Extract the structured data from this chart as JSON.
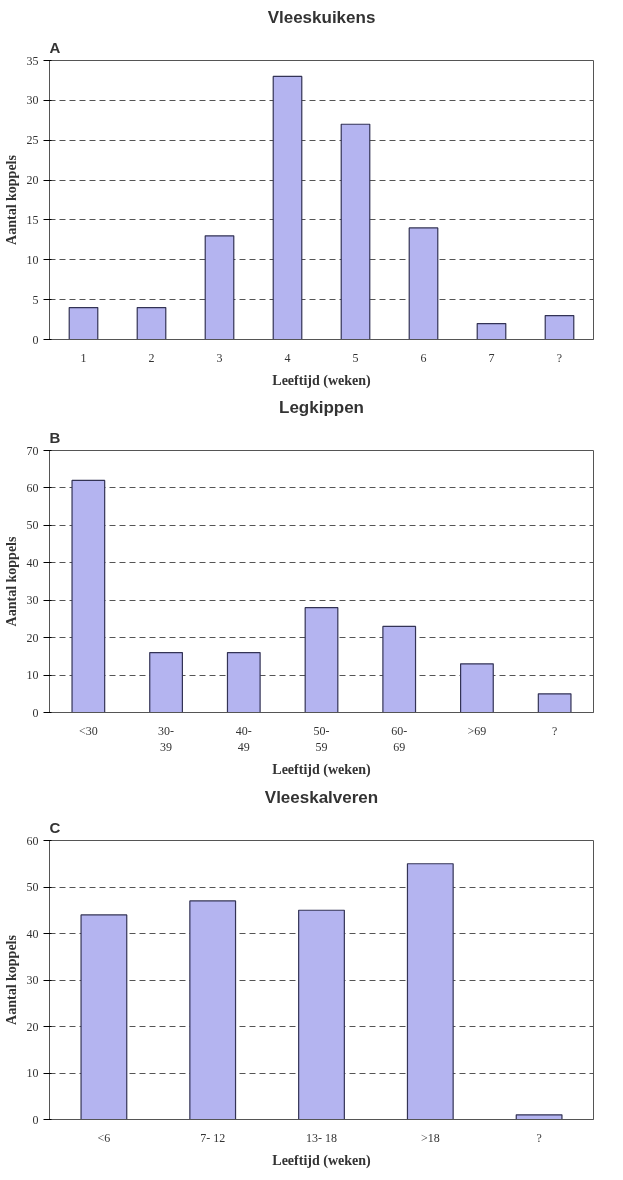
{
  "chart_data": [
    {
      "type": "bar",
      "title": "Vleeskuikens",
      "annotations": [
        "A"
      ],
      "xlabel": "Leeftijd (weken)",
      "ylabel": "Aantal koppels",
      "categories": [
        "1",
        "2",
        "3",
        "4",
        "5",
        "6",
        "7",
        "?"
      ],
      "values": [
        4,
        4,
        13,
        33,
        27,
        14,
        2,
        3
      ],
      "color": "#b4b4f0",
      "ylim": [
        0,
        35
      ],
      "yticks": [
        0,
        5,
        10,
        15,
        20,
        25,
        30,
        35
      ],
      "grid": "y"
    },
    {
      "type": "bar",
      "title": "Legkippen",
      "annotations": [
        "B"
      ],
      "xlabel": "Leeftijd (weken)",
      "ylabel": "Aantal koppels",
      "categories": [
        "<30",
        "30-\n39",
        "40-\n49",
        "50-\n59",
        "60-\n69",
        ">69",
        "?"
      ],
      "values": [
        62,
        16,
        16,
        28,
        23,
        13,
        5
      ],
      "color": "#b4b4f0",
      "ylim": [
        0,
        70
      ],
      "yticks": [
        0,
        10,
        20,
        30,
        40,
        50,
        60,
        70
      ],
      "grid": "y"
    },
    {
      "type": "bar",
      "title": "Vleeskalveren",
      "annotations": [
        "C"
      ],
      "xlabel": "Leeftijd (weken)",
      "ylabel": "Aantal koppels",
      "categories": [
        "<6",
        "7- 12",
        "13- 18",
        ">18",
        "?"
      ],
      "values": [
        44,
        47,
        45,
        55,
        1
      ],
      "color": "#b4b4f0",
      "ylim": [
        0,
        60
      ],
      "yticks": [
        0,
        10,
        20,
        30,
        40,
        50,
        60
      ],
      "grid": "y"
    }
  ]
}
